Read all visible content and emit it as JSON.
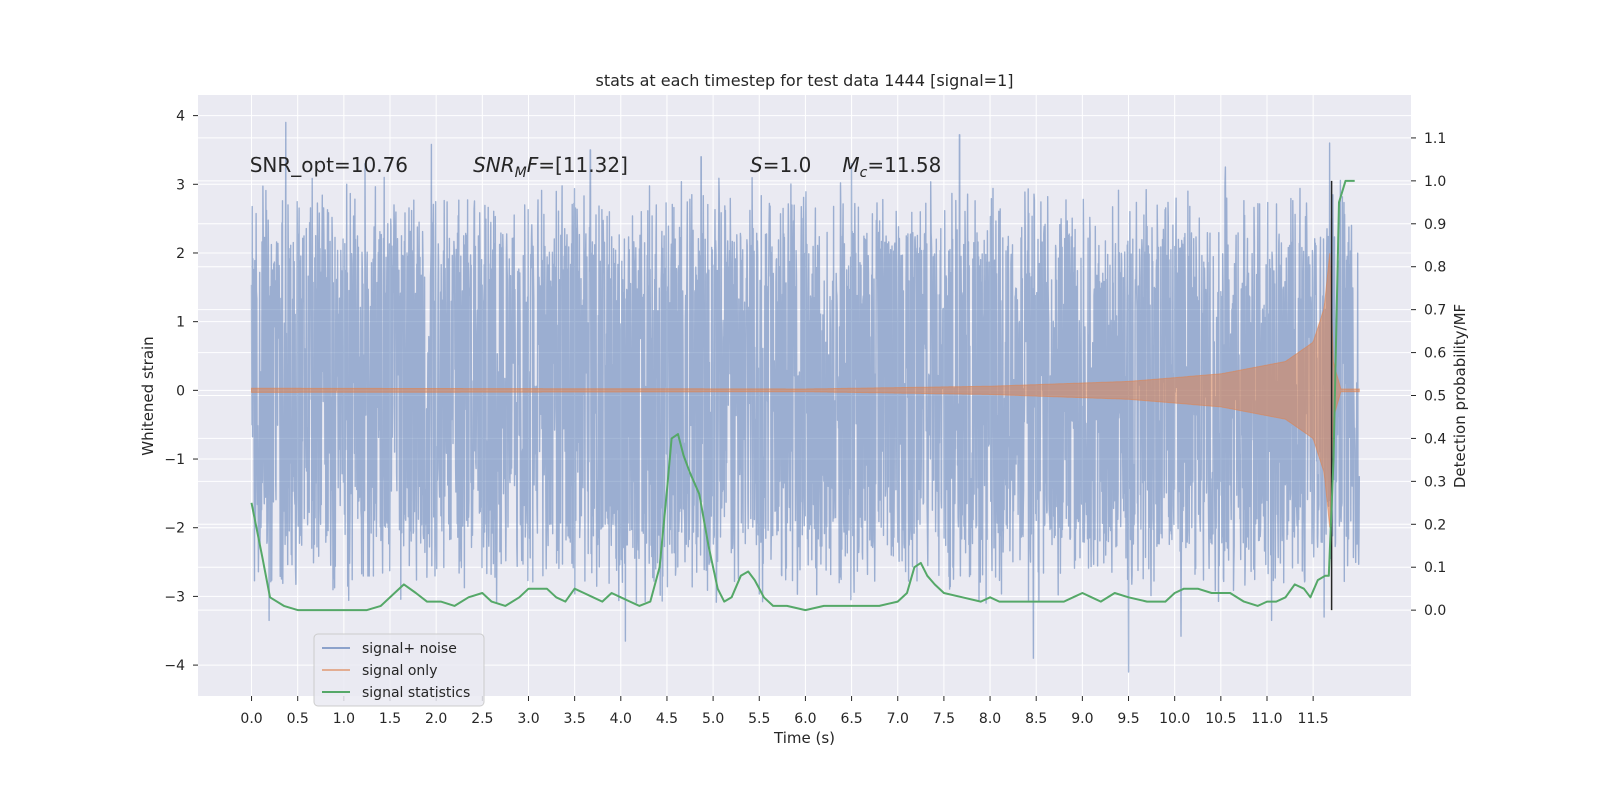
{
  "chart_data": {
    "type": "line",
    "title": "stats at each timestep for test data 1444 [signal=1]",
    "xlabel": "Time (s)",
    "ylabel": "Whitened strain",
    "y2label": "Detection probability/MF",
    "xlim": [
      -0.58,
      12.56
    ],
    "ylim": [
      -4.45,
      4.3
    ],
    "y2lim": [
      -0.2,
      1.2
    ],
    "x_ticks": [
      0.0,
      0.5,
      1.0,
      1.5,
      2.0,
      2.5,
      3.0,
      3.5,
      4.0,
      4.5,
      5.0,
      5.5,
      6.0,
      6.5,
      7.0,
      7.5,
      8.0,
      8.5,
      9.0,
      9.5,
      10.0,
      10.5,
      11.0,
      11.5
    ],
    "x_tick_labels": [
      "0.0",
      "0.5",
      "1.0",
      "1.5",
      "2.0",
      "2.5",
      "3.0",
      "3.5",
      "4.0",
      "4.5",
      "5.0",
      "5.5",
      "6.0",
      "6.5",
      "7.0",
      "7.5",
      "8.0",
      "8.5",
      "9.0",
      "9.5",
      "10.0",
      "10.5",
      "11.0",
      "11.5"
    ],
    "y_ticks": [
      4,
      3,
      2,
      1,
      0,
      -1,
      -2,
      -3,
      -4
    ],
    "y_tick_labels": [
      "4",
      "3",
      "2",
      "1",
      "0",
      "−1",
      "−2",
      "−3",
      "−4"
    ],
    "y2_ticks": [
      1.1,
      1.0,
      0.9,
      0.8,
      0.7,
      0.6,
      0.5,
      0.4,
      0.3,
      0.2,
      0.1,
      0.0
    ],
    "y2_tick_labels": [
      "1.1",
      "1.0",
      "0.9",
      "0.8",
      "0.7",
      "0.6",
      "0.5",
      "0.4",
      "0.3",
      "0.2",
      "0.1",
      "0.0"
    ],
    "grid": true,
    "legend_position": "lower-left",
    "colors": {
      "background": "#eaeaf2",
      "grid": "#ffffff",
      "noise": "#4c72b0",
      "signal": "#dd8452",
      "stats": "#55a868",
      "marker": "#262626"
    },
    "annotations": [
      {
        "text": "SNR_opt=10.76",
        "x": -0.02,
        "y": 3.18
      },
      {
        "text": "SNR_MF=[11.32]",
        "x": 2.4,
        "y": 3.18
      },
      {
        "text": "S=1.0",
        "x": 5.4,
        "y": 3.18
      },
      {
        "text": "M_c=11.58",
        "x": 6.4,
        "y": 3.18
      }
    ],
    "series": [
      {
        "name": "signal+ noise",
        "axis": "left",
        "kind": "dense-noise",
        "x_range": [
          0.0,
          12.0
        ],
        "envelope_core": [
          -1.5,
          1.5
        ],
        "peaks_upper": [
          [
            0.37,
            3.9
          ],
          [
            1.23,
            3.3
          ],
          [
            1.95,
            3.58
          ],
          [
            3.67,
            3.5
          ],
          [
            4.87,
            3.4
          ],
          [
            6.5,
            3.3
          ],
          [
            7.67,
            3.72
          ],
          [
            10.55,
            3.25
          ],
          [
            11.68,
            3.6
          ]
        ],
        "peaks_lower": [
          [
            0.19,
            -3.35
          ],
          [
            4.05,
            -3.65
          ],
          [
            8.47,
            -3.9
          ],
          [
            9.5,
            -4.1
          ],
          [
            10.07,
            -3.58
          ],
          [
            11.05,
            -3.35
          ],
          [
            11.62,
            -3.3
          ]
        ]
      },
      {
        "name": "signal only",
        "axis": "left",
        "kind": "chirp",
        "x_range": [
          0.0,
          12.0
        ],
        "merger_time": 11.7,
        "amplitude": [
          [
            0.0,
            0.03
          ],
          [
            6.0,
            0.02
          ],
          [
            8.0,
            0.06
          ],
          [
            9.5,
            0.13
          ],
          [
            10.5,
            0.24
          ],
          [
            11.2,
            0.42
          ],
          [
            11.5,
            0.7
          ],
          [
            11.62,
            1.2
          ],
          [
            11.68,
            2.0
          ],
          [
            11.72,
            0.4
          ],
          [
            11.8,
            0.02
          ],
          [
            12.0,
            0.02
          ]
        ]
      },
      {
        "name": "signal statistics",
        "axis": "right",
        "x": [
          0.0,
          0.12,
          0.2,
          0.35,
          0.5,
          0.75,
          1.0,
          1.25,
          1.4,
          1.55,
          1.65,
          1.78,
          1.9,
          2.05,
          2.2,
          2.35,
          2.5,
          2.6,
          2.75,
          2.9,
          3.0,
          3.1,
          3.2,
          3.3,
          3.4,
          3.5,
          3.6,
          3.7,
          3.8,
          3.9,
          4.0,
          4.1,
          4.2,
          4.32,
          4.42,
          4.5,
          4.55,
          4.62,
          4.68,
          4.75,
          4.85,
          4.95,
          5.05,
          5.12,
          5.2,
          5.3,
          5.38,
          5.45,
          5.55,
          5.65,
          5.8,
          6.0,
          6.2,
          6.5,
          6.8,
          7.0,
          7.1,
          7.18,
          7.25,
          7.32,
          7.4,
          7.5,
          7.7,
          7.9,
          8.0,
          8.1,
          8.2,
          8.4,
          8.6,
          8.8,
          8.9,
          9.0,
          9.1,
          9.2,
          9.35,
          9.5,
          9.7,
          9.9,
          10.0,
          10.1,
          10.25,
          10.4,
          10.6,
          10.75,
          10.9,
          11.0,
          11.1,
          11.2,
          11.3,
          11.4,
          11.47,
          11.55,
          11.63,
          11.67,
          11.72,
          11.78,
          11.85,
          11.95
        ],
        "values": [
          0.25,
          0.12,
          0.03,
          0.01,
          0.0,
          0.0,
          0.0,
          0.0,
          0.01,
          0.04,
          0.06,
          0.04,
          0.02,
          0.02,
          0.01,
          0.03,
          0.04,
          0.02,
          0.01,
          0.03,
          0.05,
          0.05,
          0.05,
          0.03,
          0.02,
          0.05,
          0.04,
          0.03,
          0.02,
          0.04,
          0.03,
          0.02,
          0.01,
          0.02,
          0.1,
          0.28,
          0.4,
          0.41,
          0.36,
          0.32,
          0.27,
          0.15,
          0.05,
          0.02,
          0.03,
          0.08,
          0.09,
          0.07,
          0.03,
          0.01,
          0.01,
          0.0,
          0.01,
          0.01,
          0.01,
          0.02,
          0.04,
          0.1,
          0.11,
          0.08,
          0.06,
          0.04,
          0.03,
          0.02,
          0.03,
          0.02,
          0.02,
          0.02,
          0.02,
          0.02,
          0.03,
          0.04,
          0.03,
          0.02,
          0.04,
          0.03,
          0.02,
          0.02,
          0.04,
          0.05,
          0.05,
          0.04,
          0.04,
          0.02,
          0.01,
          0.02,
          0.02,
          0.03,
          0.06,
          0.05,
          0.03,
          0.07,
          0.08,
          0.08,
          0.35,
          0.95,
          1.0,
          1.0
        ]
      }
    ],
    "merger_marker": {
      "x": 11.7,
      "y2_from": 0.0,
      "y2_to": 1.0
    }
  }
}
